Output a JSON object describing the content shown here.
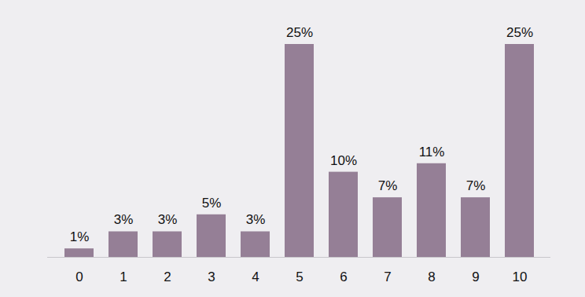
{
  "chart_data": {
    "type": "bar",
    "categories": [
      "0",
      "1",
      "2",
      "3",
      "4",
      "5",
      "6",
      "7",
      "8",
      "9",
      "10"
    ],
    "values": [
      1,
      3,
      3,
      5,
      3,
      25,
      10,
      7,
      11,
      7,
      25
    ],
    "value_labels": [
      "1%",
      "3%",
      "3%",
      "5%",
      "3%",
      "25%",
      "10%",
      "7%",
      "11%",
      "7%",
      "25%"
    ],
    "color": "#957f96",
    "ylim": [
      0,
      25
    ],
    "grid": false,
    "data_labels": true,
    "tick_labels": "x"
  }
}
